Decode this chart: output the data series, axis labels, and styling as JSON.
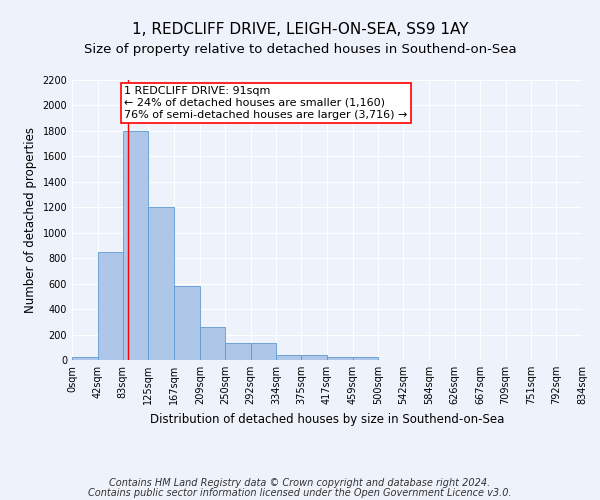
{
  "title": "1, REDCLIFF DRIVE, LEIGH-ON-SEA, SS9 1AY",
  "subtitle": "Size of property relative to detached houses in Southend-on-Sea",
  "xlabel": "Distribution of detached houses by size in Southend-on-Sea",
  "ylabel": "Number of detached properties",
  "footnote1": "Contains HM Land Registry data © Crown copyright and database right 2024.",
  "footnote2": "Contains public sector information licensed under the Open Government Licence v3.0.",
  "bin_edges": [
    0,
    42,
    83,
    125,
    167,
    209,
    250,
    292,
    334,
    375,
    417,
    459,
    500,
    542,
    584,
    626,
    667,
    709,
    751,
    792,
    834
  ],
  "bar_heights": [
    25,
    850,
    1800,
    1200,
    580,
    260,
    130,
    130,
    40,
    40,
    25,
    20,
    0,
    0,
    0,
    0,
    0,
    0,
    0,
    0
  ],
  "bar_color": "#aec6e8",
  "bar_edge_color": "#5b9bd5",
  "red_line_x": 91,
  "ylim": [
    0,
    2200
  ],
  "ytick_step": 200,
  "annotation_text": "1 REDCLIFF DRIVE: 91sqm\n← 24% of detached houses are smaller (1,160)\n76% of semi-detached houses are larger (3,716) →",
  "bg_color": "#eef2fa",
  "grid_color": "#ffffff",
  "title_fontsize": 11,
  "subtitle_fontsize": 9.5,
  "axis_label_fontsize": 8.5,
  "tick_fontsize": 7,
  "annotation_fontsize": 8
}
